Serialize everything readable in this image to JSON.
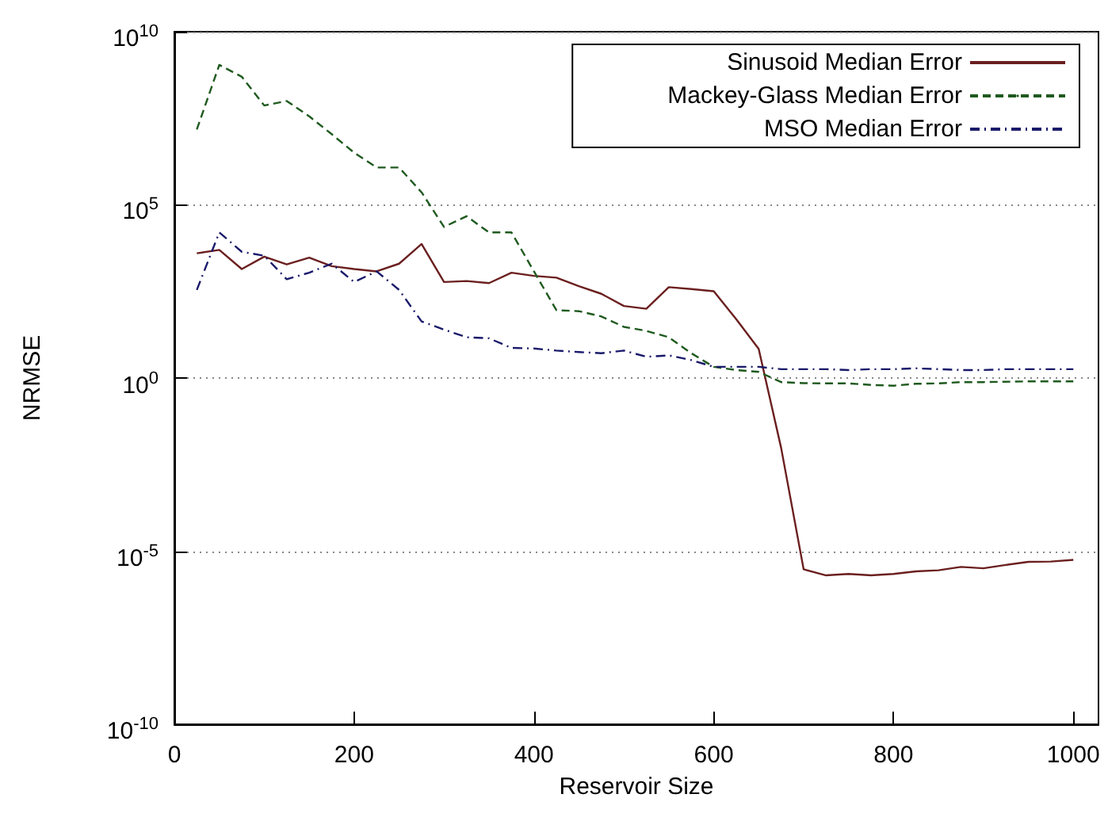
{
  "chart_data": {
    "type": "line",
    "xlabel": "Reservoir Size",
    "ylabel": "NRMSE",
    "x": [
      25,
      50,
      75,
      100,
      125,
      150,
      175,
      200,
      225,
      250,
      275,
      300,
      325,
      350,
      375,
      400,
      425,
      450,
      475,
      500,
      525,
      550,
      575,
      600,
      625,
      650,
      675,
      700,
      725,
      750,
      775,
      800,
      825,
      850,
      875,
      900,
      925,
      950,
      975,
      1000
    ],
    "series": [
      {
        "name": "Sinusoid Median Error",
        "color": "#6b1f1f",
        "line_style": "solid",
        "values": [
          4000,
          5000,
          1400,
          3200,
          1900,
          3000,
          1700,
          1400,
          1200,
          2000,
          7400,
          590,
          630,
          550,
          1100,
          890,
          790,
          450,
          270,
          120,
          100,
          420,
          370,
          320,
          50,
          6.9,
          0.0095,
          3e-06,
          2e-06,
          2.2e-06,
          2e-06,
          2.2e-06,
          2.6e-06,
          2.8e-06,
          3.5e-06,
          3.2e-06,
          4e-06,
          4.9e-06,
          5e-06,
          5.6e-06
        ]
      },
      {
        "name": "Mackey-Glass Median Error",
        "color": "#1f5a1f",
        "line_style": "dashed",
        "values": [
          15000000.0,
          1100000000.0,
          500000000.0,
          74000000.0,
          100000000.0,
          36000000.0,
          11000000.0,
          3200000.0,
          1200000.0,
          1200000.0,
          230000.0,
          23000.0,
          47000.0,
          16000.0,
          16000.0,
          1200,
          91,
          85,
          60,
          30,
          23,
          15,
          5.2,
          2.1,
          1.7,
          1.5,
          0.76,
          0.71,
          0.7,
          0.7,
          0.63,
          0.6,
          0.68,
          0.7,
          0.76,
          0.76,
          0.78,
          0.8,
          0.8,
          0.8
        ]
      },
      {
        "name": "MSO Median Error",
        "color": "#1a1a6b",
        "line_style": "dashdot",
        "values": [
          350,
          16000.0,
          4400,
          3400,
          710,
          1100,
          2000,
          590,
          1200,
          350,
          43,
          25,
          15,
          14,
          7.4,
          7.1,
          6.2,
          5.6,
          5.2,
          6.2,
          4.1,
          4.5,
          3.3,
          2.1,
          2.1,
          2.1,
          1.8,
          1.8,
          1.8,
          1.7,
          1.8,
          1.8,
          1.9,
          1.8,
          1.7,
          1.7,
          1.8,
          1.8,
          1.8,
          1.8
        ]
      }
    ],
    "xlim": [
      0,
      1028
    ],
    "xticks": [
      0,
      200,
      400,
      600,
      800,
      1000
    ],
    "ylim": [
      1e-10,
      10000000000.0
    ],
    "log": true,
    "yticks": [
      {
        "value": 1e-10,
        "label": "10$^{-10}$"
      },
      {
        "value": 1e-05,
        "label": "10$^{-5}$"
      },
      {
        "value": 1,
        "label": "10$^{0}$"
      },
      {
        "value": 100000.0,
        "label": "10$^{5}$"
      },
      {
        "value": 10000000000.0,
        "label": "10$^{10}$"
      }
    ],
    "grid": "y",
    "legend": "top right",
    "marker": "none"
  }
}
